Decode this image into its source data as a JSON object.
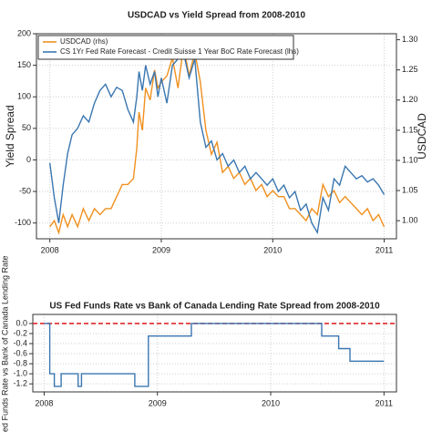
{
  "chart_data": [
    {
      "type": "line",
      "title": "USDCAD vs Yield Spread from 2008-2010",
      "y_label": "Yield Spread",
      "y2_label": "USDCAD",
      "x": [
        2008.0,
        2008.04,
        2008.08,
        2008.12,
        2008.16,
        2008.2,
        2008.25,
        2008.3,
        2008.35,
        2008.4,
        2008.45,
        2008.5,
        2008.55,
        2008.6,
        2008.65,
        2008.7,
        2008.75,
        2008.78,
        2008.8,
        2008.83,
        2008.86,
        2008.9,
        2008.94,
        2008.97,
        2009.0,
        2009.05,
        2009.1,
        2009.15,
        2009.2,
        2009.25,
        2009.3,
        2009.35,
        2009.4,
        2009.45,
        2009.5,
        2009.55,
        2009.6,
        2009.65,
        2009.7,
        2009.75,
        2009.8,
        2009.85,
        2009.9,
        2009.95,
        2010.0,
        2010.05,
        2010.1,
        2010.15,
        2010.2,
        2010.25,
        2010.3,
        2010.35,
        2010.4,
        2010.45,
        2010.5,
        2010.55,
        2010.6,
        2010.65,
        2010.7,
        2010.75,
        2010.8,
        2010.85,
        2010.9,
        2010.95,
        2011.0
      ],
      "series": [
        {
          "name": "USDCAD (rhs)",
          "color": "#f0901e",
          "axis": "y2",
          "values": [
            0.99,
            1.0,
            0.98,
            1.01,
            0.99,
            1.01,
            0.99,
            1.02,
            1.0,
            1.02,
            1.01,
            1.02,
            1.02,
            1.04,
            1.06,
            1.06,
            1.07,
            1.12,
            1.18,
            1.15,
            1.22,
            1.2,
            1.25,
            1.22,
            1.23,
            1.24,
            1.27,
            1.22,
            1.29,
            1.24,
            1.28,
            1.23,
            1.15,
            1.11,
            1.13,
            1.08,
            1.09,
            1.07,
            1.08,
            1.06,
            1.07,
            1.05,
            1.06,
            1.04,
            1.05,
            1.04,
            1.04,
            1.02,
            1.02,
            1.01,
            1.0,
            1.02,
            1.01,
            1.06,
            1.04,
            1.05,
            1.03,
            1.04,
            1.03,
            1.02,
            1.01,
            1.02,
            1.0,
            1.01,
            0.99
          ]
        },
        {
          "name": "CS 1Yr Fed Rate Forecast - Credit Suisse 1 Year BoC Rate Forecast (lhs)",
          "color": "#3a76b0",
          "axis": "y",
          "values": [
            -5,
            -60,
            -100,
            -40,
            10,
            40,
            50,
            70,
            60,
            90,
            110,
            120,
            100,
            115,
            110,
            80,
            60,
            100,
            140,
            110,
            150,
            120,
            140,
            100,
            130,
            90,
            150,
            160,
            170,
            130,
            160,
            60,
            20,
            30,
            0,
            10,
            -10,
            0,
            -20,
            -10,
            -30,
            -20,
            -30,
            -40,
            -30,
            -50,
            -40,
            -60,
            -50,
            -80,
            -70,
            -100,
            -115,
            -60,
            -80,
            -30,
            -40,
            -10,
            -20,
            -30,
            -25,
            -35,
            -30,
            -40,
            -55
          ]
        }
      ],
      "xlim": [
        2007.88,
        2011.11
      ],
      "xticks": [
        2008,
        2009,
        2010,
        2011
      ],
      "ylim": [
        -125,
        200
      ],
      "yticks": [
        -100,
        -50,
        0,
        50,
        100,
        150,
        200
      ],
      "y2lim": [
        0.97,
        1.31
      ],
      "y2ticks": [
        {
          "value": 1,
          "label": "1.00"
        },
        1.05,
        {
          "value": 1.1,
          "label": "1.10"
        },
        1.15,
        {
          "value": 1.2,
          "label": "1.20"
        },
        1.25,
        {
          "value": 1.3,
          "label": "1.30"
        }
      ],
      "grid": true,
      "legend": "top-left"
    },
    {
      "type": "line",
      "title": "US Fed Funds Rate vs Bank of Canada Lending Rate Spread from 2008-2010",
      "y_label": "US Fed Funds Rate vs Bank of Canada Lending Rate",
      "x": [
        2008.0,
        2008.05,
        2008.05,
        2008.09,
        2008.09,
        2008.15,
        2008.15,
        2008.3,
        2008.3,
        2008.33,
        2008.33,
        2008.8,
        2008.8,
        2008.92,
        2008.92,
        2009.3,
        2009.3,
        2010.45,
        2010.45,
        2010.6,
        2010.6,
        2010.7,
        2010.7,
        2011.0
      ],
      "series": [
        {
          "color": "#3a76b0",
          "values": [
            0,
            0,
            -1.0,
            -1.0,
            -1.25,
            -1.25,
            -1.0,
            -1.0,
            -1.25,
            -1.25,
            -1.0,
            -1.0,
            -1.25,
            -1.25,
            -0.25,
            -0.25,
            0,
            0,
            -0.25,
            -0.25,
            -0.5,
            -0.5,
            -0.75,
            -0.75
          ]
        }
      ],
      "reference_line": {
        "value": 0,
        "color": "#e0282a"
      },
      "xlim": [
        2007.9,
        2011.11
      ],
      "xticks": [
        2008,
        2009,
        2010,
        2011
      ],
      "ylim": [
        -1.36,
        0.18
      ],
      "yticks": [
        {
          "value": 0,
          "label": "0.0"
        },
        -0.2,
        -0.4,
        -0.6,
        -0.8,
        {
          "value": -1,
          "label": "-1.0"
        },
        -1.2
      ],
      "grid": true
    }
  ]
}
